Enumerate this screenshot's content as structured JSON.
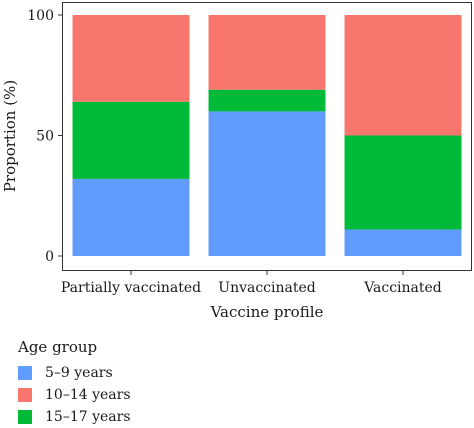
{
  "chart_data": {
    "type": "bar",
    "stacked": true,
    "categories": [
      "Partially vaccinated",
      "Unvaccinated",
      "Vaccinated"
    ],
    "series": [
      {
        "name": "5–9 years",
        "color": "#619CFF",
        "values": [
          32,
          60,
          11
        ]
      },
      {
        "name": "15–17 years",
        "color": "#00BA38",
        "values": [
          32,
          9,
          39
        ]
      },
      {
        "name": "10–14 years",
        "color": "#F8766D",
        "values": [
          36,
          31,
          50
        ]
      }
    ],
    "xlabel": "Vaccine profile",
    "ylabel": "Proportion (%)",
    "ylim": [
      0,
      100
    ],
    "yticks": [
      0,
      50,
      100
    ],
    "grid": false,
    "legend": {
      "title": "Age group",
      "placement": "bottom-left",
      "items": [
        {
          "label": "5–9 years",
          "color": "#619CFF"
        },
        {
          "label": "10–14 years",
          "color": "#F8766D"
        },
        {
          "label": "15–17 years",
          "color": "#00BA38"
        }
      ]
    }
  }
}
